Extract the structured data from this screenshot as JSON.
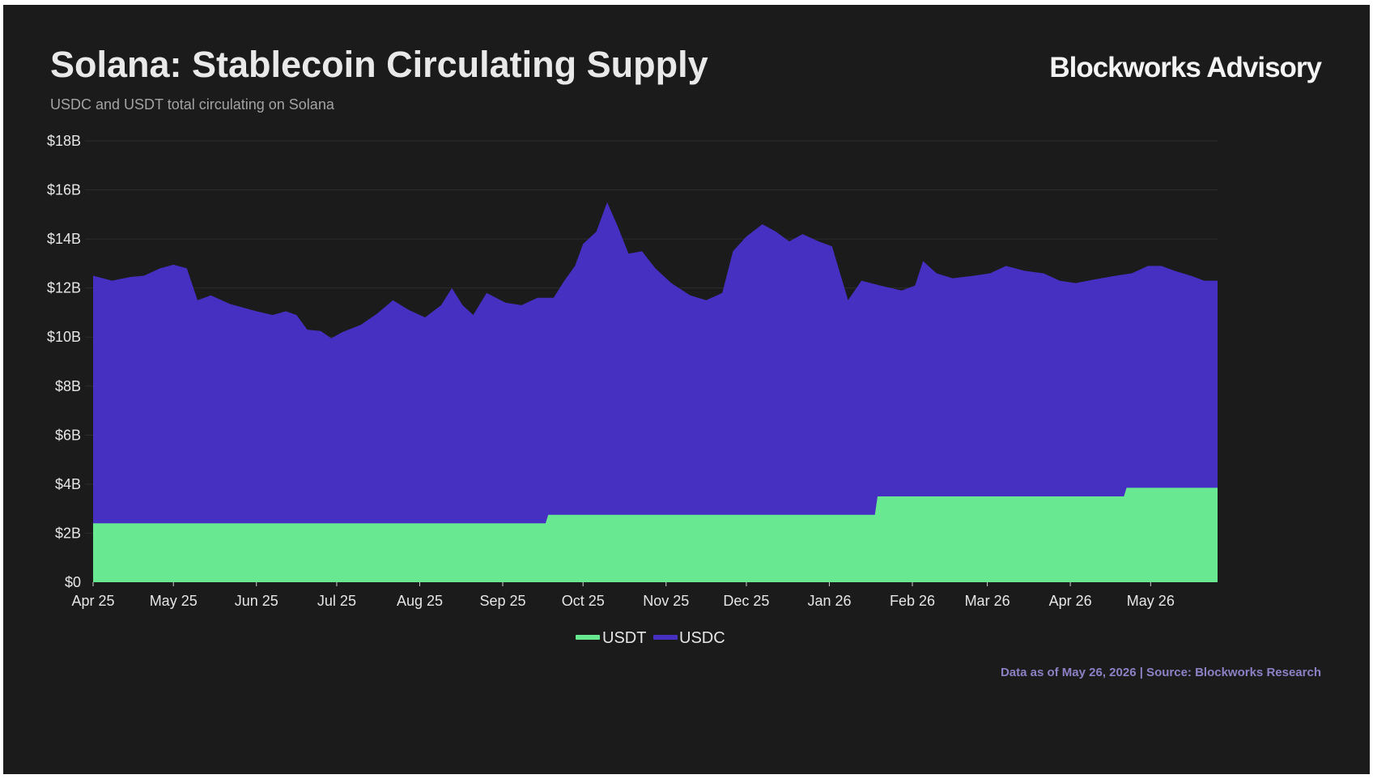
{
  "header": {
    "title": "Solana: Stablecoin Circulating Supply",
    "subtitle": "USDC and USDT total circulating on Solana",
    "brand": "Blockworks Advisory"
  },
  "footer": {
    "source": "Data as of May 26, 2026 | Source: Blockworks Research"
  },
  "colors": {
    "background": "#1b1b1b",
    "usdt": "#68e890",
    "usdc": "#4530c2",
    "grid": "#2c2c2c"
  },
  "chart_data": {
    "type": "area",
    "stacked": true,
    "title": "Solana: Stablecoin Circulating Supply",
    "subtitle": "USDC and USDT total circulating on Solana",
    "xlabel": "",
    "ylabel": "",
    "ylim": [
      0,
      18
    ],
    "y_unit": "$B",
    "y_ticks": [
      0,
      2,
      4,
      6,
      8,
      10,
      12,
      14,
      16,
      18
    ],
    "y_tick_labels": [
      "$0",
      "$2B",
      "$4B",
      "$6B",
      "$8B",
      "$10B",
      "$12B",
      "$14B",
      "$16B",
      "$18B"
    ],
    "x_range": [
      "2025-04-01",
      "2026-05-26"
    ],
    "x_tick_dates": [
      "2025-04-01",
      "2025-05-01",
      "2025-06-01",
      "2025-07-01",
      "2025-08-01",
      "2025-09-01",
      "2025-10-01",
      "2025-11-01",
      "2025-12-01",
      "2026-01-01",
      "2026-02-01",
      "2026-03-01",
      "2026-04-01",
      "2026-05-01"
    ],
    "x_tick_labels": [
      "Apr 25",
      "May 25",
      "Jun 25",
      "Jul 25",
      "Aug 25",
      "Sep 25",
      "Oct 25",
      "Nov 25",
      "Dec 25",
      "Jan 26",
      "Feb 26",
      "Mar 26",
      "Apr 26",
      "May 26"
    ],
    "grid": true,
    "legend": "bottom-center",
    "series": [
      {
        "name": "USDT",
        "color": "#68e890",
        "points": [
          [
            "2025-04-01",
            2.4
          ],
          [
            "2025-09-17",
            2.4
          ],
          [
            "2025-09-18",
            2.75
          ],
          [
            "2026-01-18",
            2.75
          ],
          [
            "2026-01-19",
            3.5
          ],
          [
            "2026-04-21",
            3.5
          ],
          [
            "2026-04-22",
            3.85
          ],
          [
            "2026-05-26",
            3.85
          ]
        ]
      },
      {
        "name": "USDC",
        "color": "#4530c2",
        "stacked_total_points": [
          [
            "2025-04-01",
            12.5
          ],
          [
            "2025-04-08",
            12.3
          ],
          [
            "2025-04-15",
            12.45
          ],
          [
            "2025-04-20",
            12.5
          ],
          [
            "2025-04-26",
            12.8
          ],
          [
            "2025-05-01",
            12.95
          ],
          [
            "2025-05-06",
            12.8
          ],
          [
            "2025-05-10",
            11.5
          ],
          [
            "2025-05-15",
            11.7
          ],
          [
            "2025-05-22",
            11.35
          ],
          [
            "2025-06-01",
            11.05
          ],
          [
            "2025-06-07",
            10.9
          ],
          [
            "2025-06-12",
            11.05
          ],
          [
            "2025-06-16",
            10.9
          ],
          [
            "2025-06-20",
            10.3
          ],
          [
            "2025-06-25",
            10.25
          ],
          [
            "2025-06-29",
            9.95
          ],
          [
            "2025-07-03",
            10.2
          ],
          [
            "2025-07-10",
            10.5
          ],
          [
            "2025-07-16",
            10.95
          ],
          [
            "2025-07-22",
            11.5
          ],
          [
            "2025-07-28",
            11.1
          ],
          [
            "2025-08-03",
            10.8
          ],
          [
            "2025-08-09",
            11.3
          ],
          [
            "2025-08-13",
            12.0
          ],
          [
            "2025-08-17",
            11.3
          ],
          [
            "2025-08-21",
            10.9
          ],
          [
            "2025-08-26",
            11.8
          ],
          [
            "2025-09-02",
            11.4
          ],
          [
            "2025-09-08",
            11.3
          ],
          [
            "2025-09-14",
            11.6
          ],
          [
            "2025-09-20",
            11.6
          ],
          [
            "2025-09-24",
            12.3
          ],
          [
            "2025-09-28",
            12.9
          ],
          [
            "2025-10-01",
            13.8
          ],
          [
            "2025-10-06",
            14.3
          ],
          [
            "2025-10-10",
            15.5
          ],
          [
            "2025-10-14",
            14.5
          ],
          [
            "2025-10-18",
            13.4
          ],
          [
            "2025-10-23",
            13.5
          ],
          [
            "2025-10-28",
            12.8
          ],
          [
            "2025-11-03",
            12.2
          ],
          [
            "2025-11-10",
            11.7
          ],
          [
            "2025-11-16",
            11.5
          ],
          [
            "2025-11-22",
            11.8
          ],
          [
            "2025-11-26",
            13.5
          ],
          [
            "2025-12-01",
            14.1
          ],
          [
            "2025-12-07",
            14.6
          ],
          [
            "2025-12-12",
            14.3
          ],
          [
            "2025-12-17",
            13.9
          ],
          [
            "2025-12-22",
            14.2
          ],
          [
            "2025-12-28",
            13.9
          ],
          [
            "2026-01-02",
            13.7
          ],
          [
            "2026-01-08",
            11.5
          ],
          [
            "2026-01-13",
            12.3
          ],
          [
            "2026-01-20",
            12.1
          ],
          [
            "2026-01-28",
            11.9
          ],
          [
            "2026-02-02",
            12.1
          ],
          [
            "2026-02-05",
            13.1
          ],
          [
            "2026-02-10",
            12.6
          ],
          [
            "2026-02-16",
            12.4
          ],
          [
            "2026-02-24",
            12.5
          ],
          [
            "2026-03-02",
            12.6
          ],
          [
            "2026-03-08",
            12.9
          ],
          [
            "2026-03-15",
            12.7
          ],
          [
            "2026-03-22",
            12.6
          ],
          [
            "2026-03-28",
            12.3
          ],
          [
            "2026-04-03",
            12.2
          ],
          [
            "2026-04-10",
            12.35
          ],
          [
            "2026-04-18",
            12.5
          ],
          [
            "2026-04-24",
            12.6
          ],
          [
            "2026-04-30",
            12.9
          ],
          [
            "2026-05-05",
            12.9
          ],
          [
            "2026-05-10",
            12.7
          ],
          [
            "2026-05-16",
            12.5
          ],
          [
            "2026-05-21",
            12.3
          ],
          [
            "2026-05-26",
            12.3
          ]
        ]
      }
    ]
  }
}
